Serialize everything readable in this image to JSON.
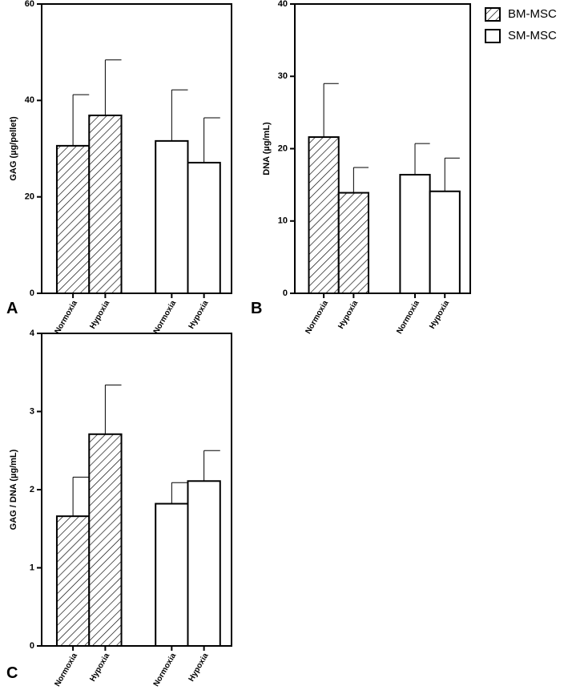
{
  "legend": [
    {
      "name": "BM-MSC",
      "pattern": "hatch"
    },
    {
      "name": "SM-MSC",
      "pattern": "open"
    }
  ],
  "chart_data": [
    {
      "type": "bar",
      "label": "A",
      "ylabel": "GAG (µg/pellet)",
      "categories": [
        "Normoxia",
        "Hypoxia",
        "Normoxia",
        "Hypoxia"
      ],
      "ylim": [
        0,
        60
      ],
      "yticks": [
        0,
        20,
        40,
        60
      ],
      "series": [
        {
          "pattern": "hatch",
          "values": [
            30.6,
            36.9,
            null,
            null
          ],
          "errors": [
            10.6,
            11.5,
            null,
            null
          ]
        },
        {
          "pattern": "open",
          "values": [
            null,
            null,
            31.6,
            27.1
          ],
          "errors": [
            null,
            null,
            10.6,
            9.3
          ]
        }
      ]
    },
    {
      "type": "bar",
      "label": "B",
      "ylabel": "DNA (µg/mL)",
      "categories": [
        "Normoxia",
        "Hypoxia",
        "Normoxia",
        "Hypoxia"
      ],
      "ylim": [
        0,
        40
      ],
      "yticks": [
        0,
        10,
        20,
        30,
        40
      ],
      "series": [
        {
          "pattern": "hatch",
          "values": [
            21.6,
            13.9,
            null,
            null
          ],
          "errors": [
            7.4,
            3.5,
            null,
            null
          ]
        },
        {
          "pattern": "open",
          "values": [
            null,
            null,
            16.4,
            14.1
          ],
          "errors": [
            null,
            null,
            4.3,
            4.6
          ]
        }
      ]
    },
    {
      "type": "bar",
      "label": "C",
      "ylabel": "GAG / DNA (µg/mL)",
      "categories": [
        "Normoxia",
        "Hypoxia",
        "Normoxia",
        "Hypoxia"
      ],
      "ylim": [
        0,
        4
      ],
      "yticks": [
        0,
        1,
        2,
        3,
        4
      ],
      "series": [
        {
          "pattern": "hatch",
          "values": [
            1.66,
            2.71,
            null,
            null
          ],
          "errors": [
            0.5,
            0.63,
            null,
            null
          ]
        },
        {
          "pattern": "open",
          "values": [
            null,
            null,
            1.82,
            2.11
          ],
          "errors": [
            null,
            null,
            0.27,
            0.39
          ]
        }
      ]
    }
  ]
}
